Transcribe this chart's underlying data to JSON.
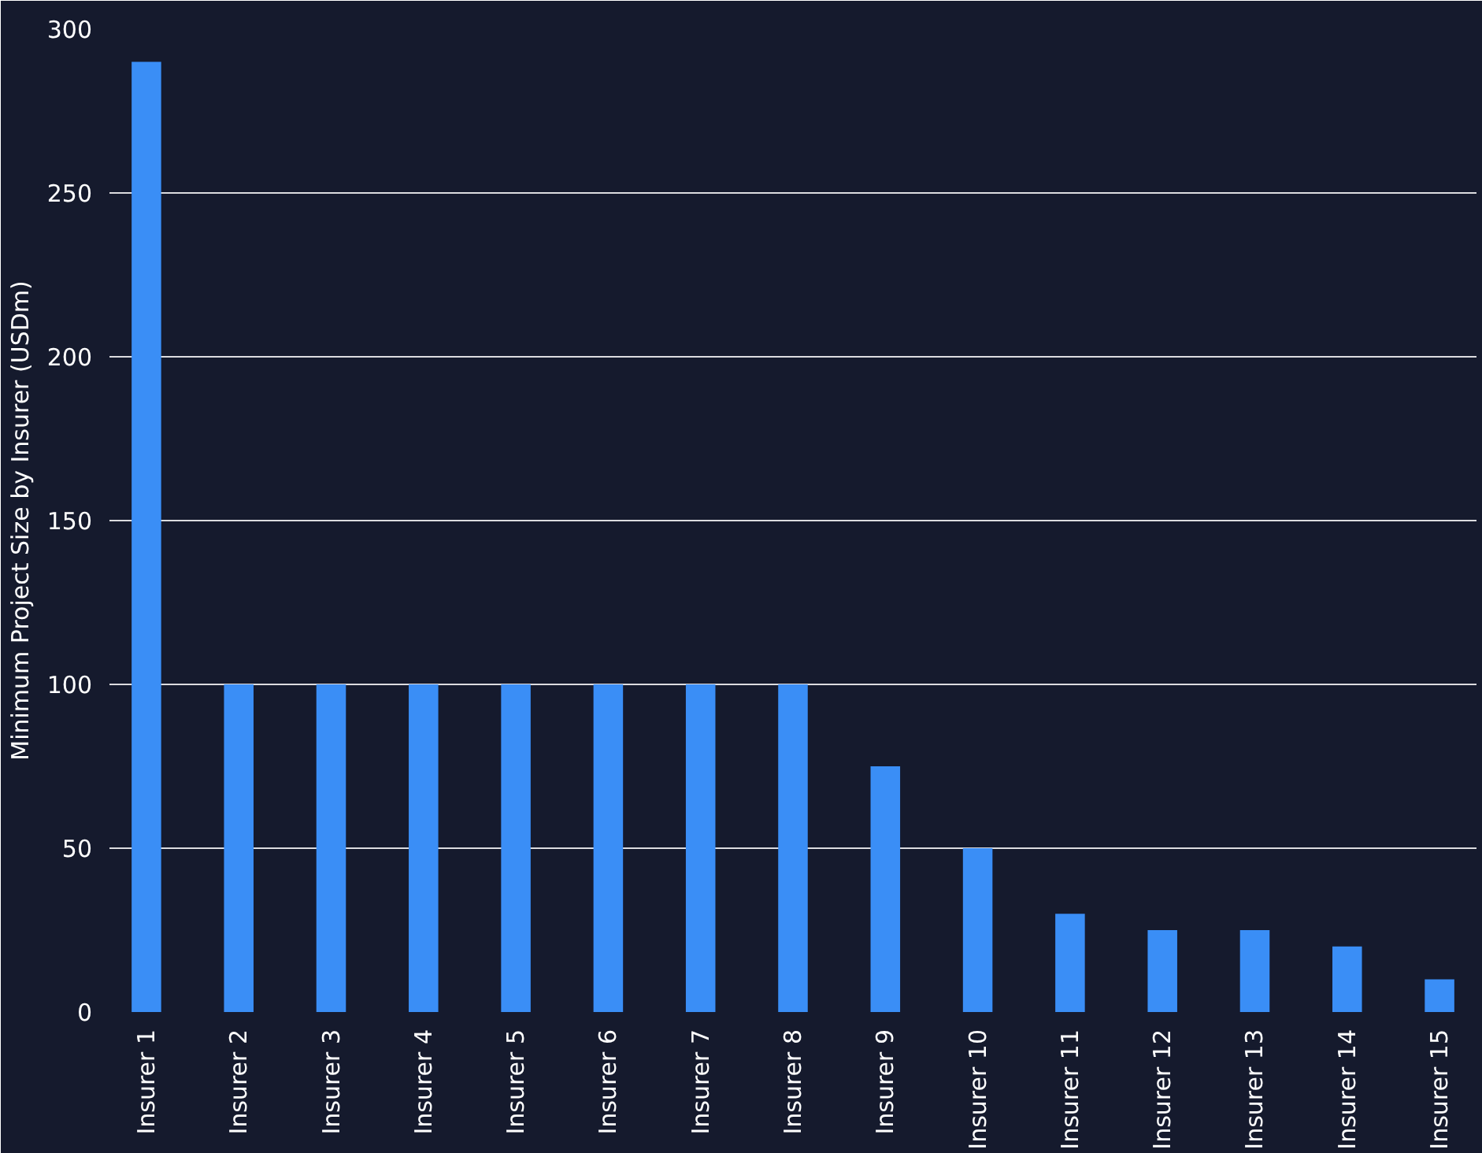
{
  "chart_data": {
    "type": "bar",
    "ylabel": "Minimum Project Size by Insurer (USDm)",
    "categories": [
      "Insurer 1",
      "Insurer 2",
      "Insurer 3",
      "Insurer 4",
      "Insurer 5",
      "Insurer 6",
      "Insurer 7",
      "Insurer 8",
      "Insurer 9",
      "Insurer 10",
      "Insurer 11",
      "Insurer 12",
      "Insurer 13",
      "Insurer 14",
      "Insurer 15"
    ],
    "values": [
      290,
      100,
      100,
      100,
      100,
      100,
      100,
      100,
      75,
      50,
      30,
      25,
      25,
      20,
      10
    ],
    "color": "#3a8ef6",
    "ylim": [
      0,
      300
    ],
    "yticks": [
      0,
      50,
      100,
      150,
      200,
      250,
      300
    ],
    "grid": "y"
  }
}
